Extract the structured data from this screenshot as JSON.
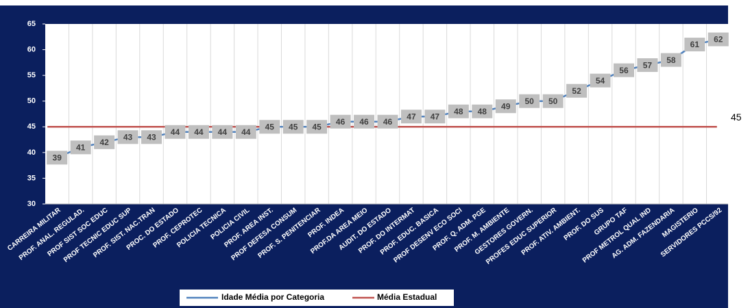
{
  "chart_data": {
    "type": "line",
    "categories": [
      "CARREIRA MILITAR",
      "PROF. ANAL. REGULAD.",
      "PROF SIST SOC EDUC",
      "PROF TECNIC EDUC SUP",
      "PROF. SIST. NAC.TRAN",
      "PROC. DO ESTADO",
      "PROF. CEPROTEC",
      "POLICIA TECNICA",
      "POLICIA CIVIL",
      "PROF. AREA INST.",
      "PROF DEFESA CONSUM",
      "PROF. S. PENITENCIAR",
      "PROF. INDEA",
      "PROF.DA AREA MEIO",
      "AUDIT. DO ESTADO",
      "PROF. DO INTERMAT",
      "PROF. EDUC. BASICA",
      "PROF DESENV ECO SOCI",
      "PROF. Q. ADM. PGE",
      "PROF. M. AMBIENTE",
      "GESTORES GOVERN.",
      "PROFES EDUC SUPERIOR",
      "PROF. ATIV. AMBIENT.",
      "PROF. DO SUS",
      "GRUPO TAF",
      "PROF METROL QUAL IND",
      "AG. ADM. FAZENDARIA",
      "MAGISTERIO",
      "SERVIDORES PCCS/92"
    ],
    "series": [
      {
        "name": "Idade Média por Categoria",
        "color": "#4f81bd",
        "values": [
          39,
          41,
          42,
          43,
          43,
          44,
          44,
          44,
          44,
          45,
          45,
          45,
          46,
          46,
          46,
          47,
          47,
          48,
          48,
          49,
          50,
          50,
          52,
          54,
          56,
          57,
          58,
          61,
          62
        ]
      }
    ],
    "reference_line": {
      "name": "Média Estadual",
      "value": 45,
      "color": "#c0504d"
    },
    "ylim": [
      30,
      65
    ],
    "yticks": [
      30,
      35,
      40,
      45,
      50,
      55,
      60,
      65
    ],
    "grid": true,
    "legend": "bottom"
  }
}
